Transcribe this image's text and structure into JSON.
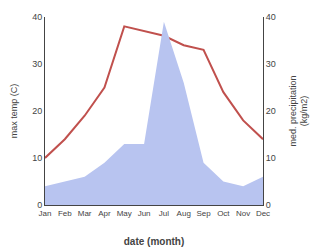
{
  "chart_data": {
    "type": "line",
    "xlabel": "date (month)",
    "ylabel": "max temp (C)",
    "y2label": "med. precipitation\n(kg/m2)",
    "categories": [
      "Jan",
      "Feb",
      "Mar",
      "Apr",
      "May",
      "Jun",
      "Jul",
      "Aug",
      "Sep",
      "Oct",
      "Nov",
      "Dec"
    ],
    "series": [
      {
        "type": "area",
        "axis": "y2",
        "color": "#b8c4f0",
        "values": [
          4,
          5,
          6,
          9,
          13,
          13,
          39,
          26,
          9,
          5,
          4,
          6
        ]
      },
      {
        "type": "line",
        "color": "#c0504d",
        "values": [
          10,
          14,
          19,
          25,
          38,
          37,
          36,
          34,
          33,
          24,
          18,
          14
        ]
      }
    ],
    "ylim": [
      0,
      40
    ],
    "yticks": [
      0,
      10,
      20,
      30,
      40
    ],
    "y2lim": [
      0,
      40
    ],
    "y2ticks": [
      0,
      10,
      20,
      30,
      40
    ],
    "grid": false
  }
}
